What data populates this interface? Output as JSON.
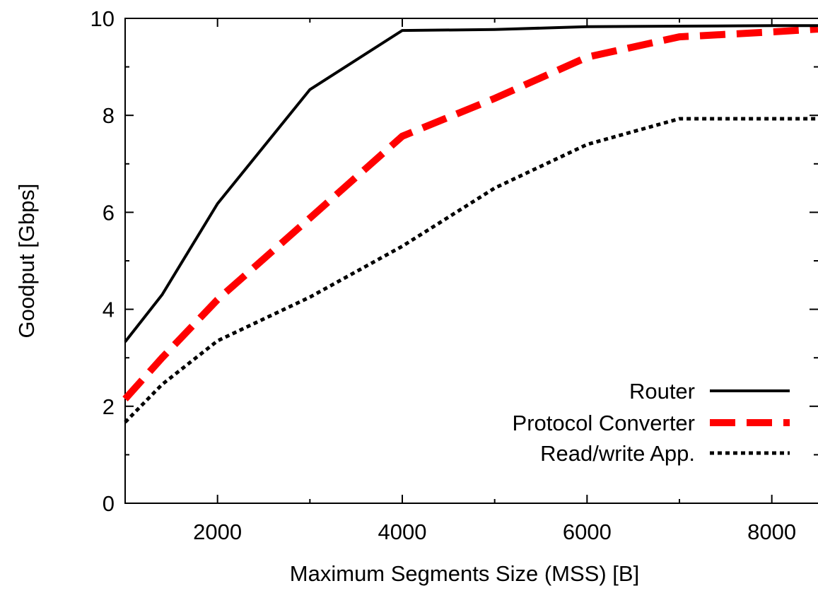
{
  "chart_data": {
    "type": "line",
    "title": "",
    "xlabel": "Maximum Segments Size (MSS) [B]",
    "ylabel": "Goodput [Gbps]",
    "xlim": [
      1000,
      8500
    ],
    "ylim": [
      0,
      10
    ],
    "xticks": [
      2000,
      4000,
      6000,
      8000
    ],
    "xtick_labels": [
      "2000",
      "4000",
      "6000",
      "8000"
    ],
    "yticks": [
      0,
      2,
      4,
      6,
      8,
      10
    ],
    "ytick_labels": [
      "0",
      "2",
      "4",
      "6",
      "8",
      "10"
    ],
    "grid": false,
    "legend_position": "bottom-right",
    "series": [
      {
        "name": "Router",
        "color": "#000000",
        "style": "solid",
        "x": [
          1000,
          1400,
          2000,
          3000,
          4000,
          5000,
          6000,
          7000,
          8000,
          8500
        ],
        "y": [
          3.33,
          4.3,
          6.18,
          8.53,
          9.75,
          9.77,
          9.83,
          9.84,
          9.85,
          9.85
        ]
      },
      {
        "name": "Protocol Converter",
        "color": "#ff0000",
        "style": "dashed",
        "x": [
          1000,
          1400,
          2000,
          3000,
          4000,
          5000,
          6000,
          7000,
          8000,
          8500
        ],
        "y": [
          2.15,
          3.0,
          4.2,
          5.88,
          7.57,
          8.35,
          9.2,
          9.62,
          9.72,
          9.78
        ]
      },
      {
        "name": "Read/write App.",
        "color": "#000000",
        "style": "dotted",
        "x": [
          1000,
          1400,
          2000,
          3000,
          4000,
          5000,
          6000,
          7000,
          8000,
          8500
        ],
        "y": [
          1.67,
          2.45,
          3.35,
          4.25,
          5.3,
          6.5,
          7.4,
          7.93,
          7.93,
          7.93
        ]
      }
    ]
  }
}
